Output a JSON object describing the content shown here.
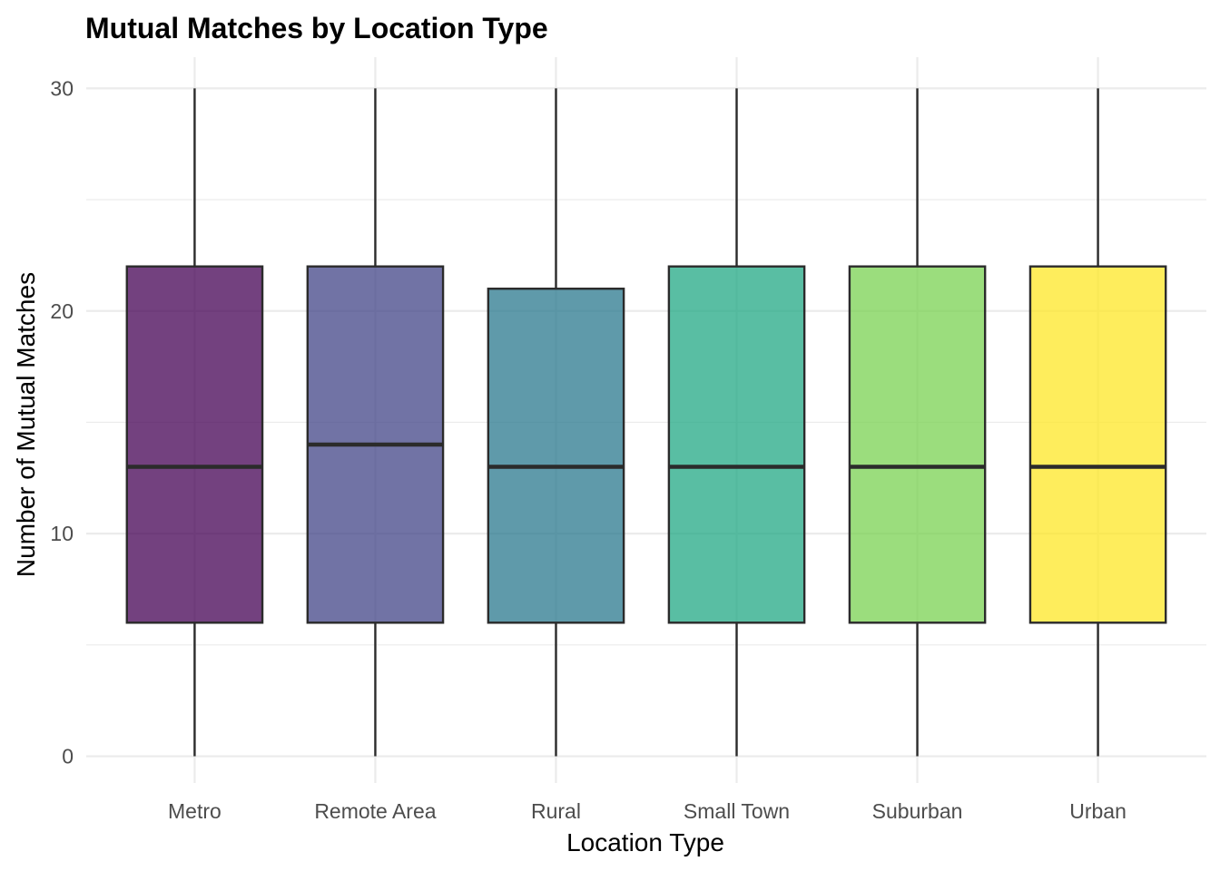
{
  "chart_data": {
    "type": "boxplot",
    "title": "Mutual Matches by Location Type",
    "xlabel": "Location Type",
    "ylabel": "Number of Mutual Matches",
    "ylim": [
      -1.2,
      31.4
    ],
    "yticks": [
      0,
      10,
      20,
      30
    ],
    "grid": true,
    "legend": "none",
    "categories": [
      "Metro",
      "Remote Area",
      "Rural",
      "Small Town",
      "Suburban",
      "Urban"
    ],
    "boxes": [
      {
        "category": "Metro",
        "min": 0,
        "q1": 6,
        "median": 13,
        "q3": 22,
        "max": 30,
        "color": "#440154"
      },
      {
        "category": "Remote Area",
        "min": 0,
        "q1": 6,
        "median": 14,
        "q3": 22,
        "max": 30,
        "color": "#414487"
      },
      {
        "category": "Rural",
        "min": 0,
        "q1": 6,
        "median": 13,
        "q3": 21,
        "max": 30,
        "color": "#2A788E"
      },
      {
        "category": "Small Town",
        "min": 0,
        "q1": 6,
        "median": 13,
        "q3": 22,
        "max": 30,
        "color": "#22A884"
      },
      {
        "category": "Suburban",
        "min": 0,
        "q1": 6,
        "median": 13,
        "q3": 22,
        "max": 30,
        "color": "#7AD151"
      },
      {
        "category": "Urban",
        "min": 0,
        "q1": 6,
        "median": 13,
        "q3": 22,
        "max": 30,
        "color": "#FDE725"
      }
    ]
  }
}
